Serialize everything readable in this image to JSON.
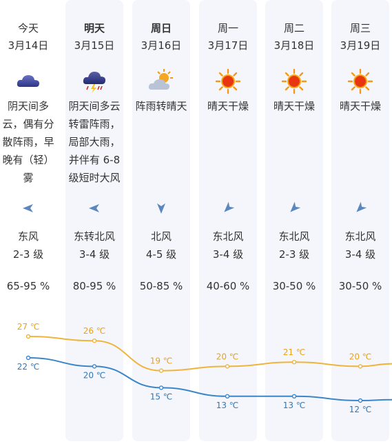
{
  "forecast": {
    "days": [
      {
        "day": "今天",
        "date": "3月14日",
        "weather_icon": "cloud-icon",
        "desc": "阴天间多云，偶有分散阵雨，早晚有（轻）雾",
        "wind_icon": "wind-arrow-icon",
        "wind_dir": "东风",
        "wind_level": "2-3 级",
        "humidity": "65-95 %",
        "high": "27 ℃",
        "low": "22 ℃"
      },
      {
        "day": "明天",
        "date": "3月15日",
        "weather_icon": "thunderstorm-icon",
        "desc": "阴天间多云转雷阵雨，局部大雨，并伴有 6-8 级短时大风",
        "wind_icon": "wind-arrow-icon",
        "wind_dir": "东转北风",
        "wind_level": "3-4 级",
        "humidity": "80-95 %",
        "high": "26 ℃",
        "low": "20 ℃"
      },
      {
        "day": "周日",
        "date": "3月16日",
        "weather_icon": "partly-sunny-rain-icon",
        "desc": "阵雨转晴天",
        "wind_icon": "wind-arrow-icon",
        "wind_dir": "北风",
        "wind_level": "4-5 级",
        "humidity": "50-85 %",
        "high": "19 ℃",
        "low": "15 ℃"
      },
      {
        "day": "周一",
        "date": "3月17日",
        "weather_icon": "sun-icon",
        "desc": "晴天干燥",
        "wind_icon": "wind-arrow-icon",
        "wind_dir": "东北风",
        "wind_level": "3-4 级",
        "humidity": "40-60 %",
        "high": "20 ℃",
        "low": "13 ℃"
      },
      {
        "day": "周二",
        "date": "3月18日",
        "weather_icon": "sun-icon",
        "desc": "晴天干燥",
        "wind_icon": "wind-arrow-icon",
        "wind_dir": "东北风",
        "wind_level": "2-3 级",
        "humidity": "30-50 %",
        "high": "21 ℃",
        "low": "13 ℃"
      },
      {
        "day": "周三",
        "date": "3月19日",
        "weather_icon": "sun-icon",
        "desc": "晴天干燥",
        "wind_icon": "wind-arrow-icon",
        "wind_dir": "东北风",
        "wind_level": "3-4 级",
        "humidity": "30-50 %",
        "high": "20 ℃",
        "low": "12 ℃"
      }
    ]
  },
  "chart_data": {
    "type": "line",
    "categories": [
      "3月14日",
      "3月15日",
      "3月16日",
      "3月17日",
      "3月18日",
      "3月19日"
    ],
    "series": [
      {
        "values": [
          27,
          26,
          19,
          20,
          21,
          20
        ],
        "color": "#f0b43a"
      },
      {
        "values": [
          22,
          20,
          15,
          13,
          13,
          12
        ],
        "color": "#3a86c8"
      }
    ]
  }
}
